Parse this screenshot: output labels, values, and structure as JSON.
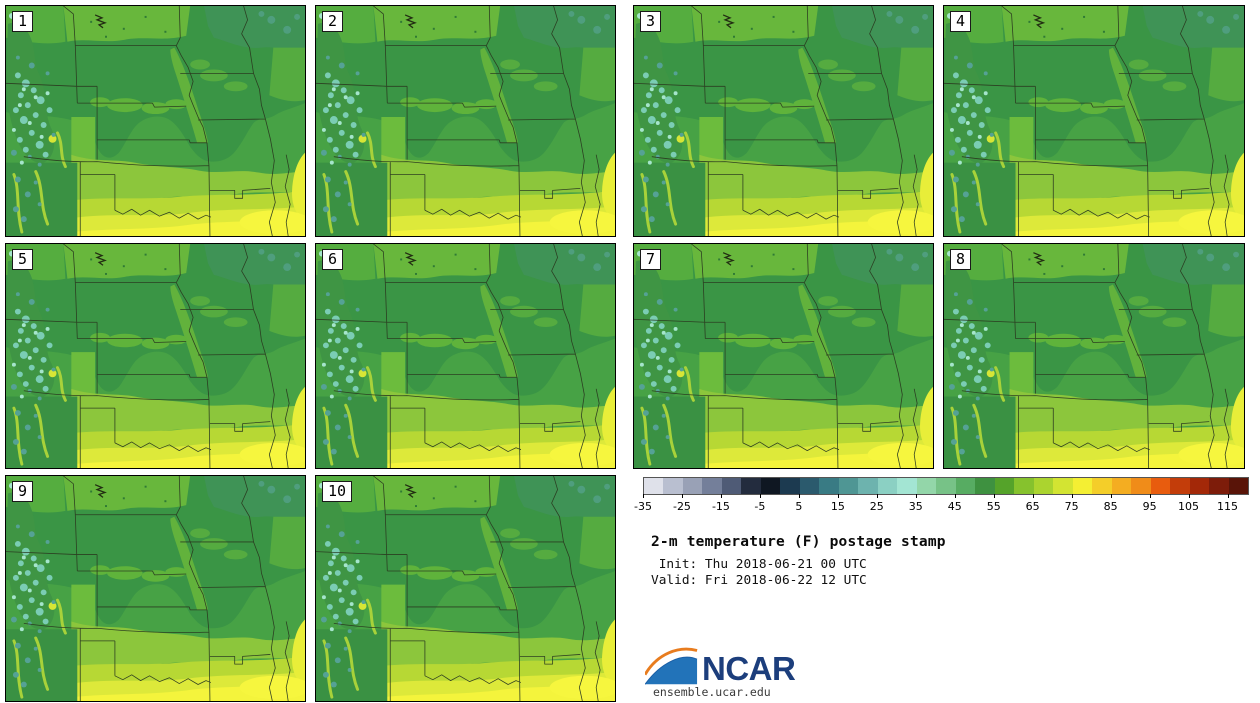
{
  "chart_data": {
    "type": "heatmap",
    "title": "2-m temperature (F) postage stamp",
    "init_label": " Init: Thu 2018-06-21 00 UTC",
    "valid_label": "Valid: Fri 2018-06-22 12 UTC",
    "panels": [
      "1",
      "2",
      "3",
      "4",
      "5",
      "6",
      "7",
      "8",
      "9",
      "10"
    ],
    "colorbar": {
      "units": "F",
      "min": -35,
      "max": 120,
      "step": 5,
      "tick_values": [
        -35,
        -25,
        -15,
        -5,
        5,
        15,
        25,
        35,
        45,
        55,
        65,
        75,
        85,
        95,
        105,
        115
      ],
      "tick_labels": [
        "-35",
        "-25",
        "-15",
        "-5",
        "5",
        "15",
        "25",
        "35",
        "45",
        "55",
        "65",
        "75",
        "85",
        "95",
        "105",
        "115"
      ],
      "colors": [
        "#dfe1ea",
        "#b9bfd0",
        "#99a1b6",
        "#747f9a",
        "#4f5b76",
        "#232c3e",
        "#0f1722",
        "#1c3a50",
        "#2b5a6d",
        "#397b84",
        "#4f9694",
        "#6db3ae",
        "#8bd0c3",
        "#a3e5d3",
        "#93d6a9",
        "#77c287",
        "#57ac62",
        "#3e9140",
        "#55a32a",
        "#86c22d",
        "#abd42f",
        "#d3e432",
        "#f4ef33",
        "#f4ce29",
        "#f4ad21",
        "#f08c19",
        "#e85c0e",
        "#c33d0a",
        "#a32808",
        "#7d1c0a",
        "#591408"
      ]
    },
    "map_palette": {
      "base_green": "#47a245",
      "dark_green": "#3a9545",
      "light_green": "#68b73c",
      "yellow_green": "#8cc63c",
      "yellow": "#dde93a",
      "bright_yellow": "#f4f43c",
      "mountain_teal": "#7bcdb4",
      "state_border": "#2a3a20"
    },
    "legend_position": "bottom-right",
    "grid": false
  },
  "branding": {
    "logo_text": "NCAR",
    "url": "ensemble.ucar.edu",
    "logo_navy": "#1c3e7c",
    "logo_blue": "#2273b9",
    "logo_orange": "#e87c1e"
  }
}
